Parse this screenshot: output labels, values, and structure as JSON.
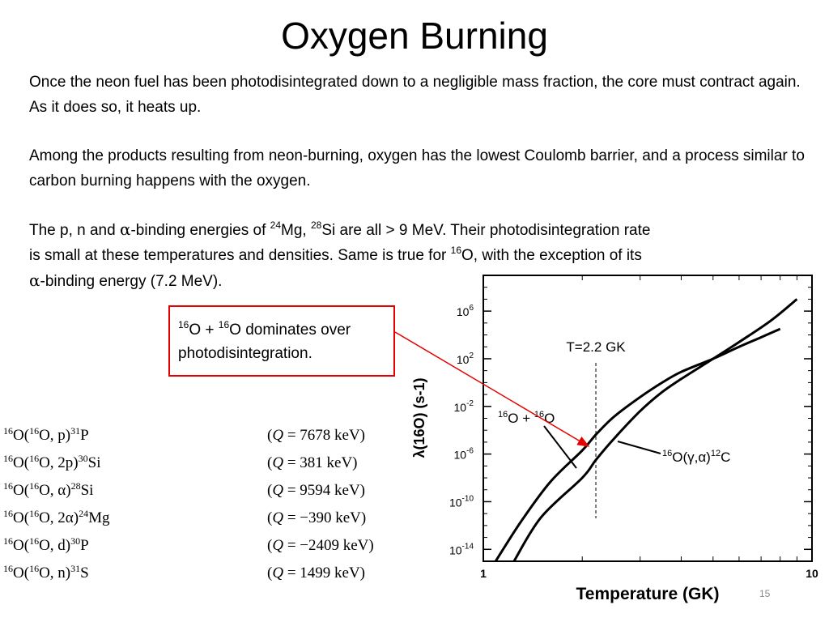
{
  "slide": {
    "title": "Oxygen Burning",
    "paragraph1": "Once the neon fuel has been photodisintegrated down to a negligible mass fraction, the core must contract again.  As it does so, it heats up.",
    "paragraph2": "Among the products resulting from neon-burning, oxygen has the lowest Coulomb barrier, and a process similar to carbon burning happens with the oxygen.",
    "paragraph3": {
      "t1": "The p, n and ",
      "alpha": "α",
      "t2": "-binding energies of ",
      "mass1": "24",
      "el1": "Mg, ",
      "mass2": "28",
      "el2": "Si are all > 9 MeV.  Their photodisintegration rate",
      "t3": "is small at these temperatures and densities.  Same is true for ",
      "mass3": "16",
      "el3": "O, with the exception of its",
      "alpha2": "α",
      "t4": "-binding energy (7.2 MeV)."
    },
    "callout": {
      "mass_a": "16",
      "text_a": "O + ",
      "mass_b": "16",
      "text_b": "O dominates over",
      "line2": "photodisintegration."
    },
    "reactions": [
      {
        "target_mass": "16",
        "target": "O(",
        "proj_mass": "16",
        "channel": "O, p)",
        "product_mass": "31",
        "product": "P",
        "q_open": "(",
        "q_var": "Q",
        "q_value": " = 7678 keV)"
      },
      {
        "target_mass": "16",
        "target": "O(",
        "proj_mass": "16",
        "channel": "O, 2p)",
        "product_mass": "30",
        "product": "Si",
        "q_open": "(",
        "q_var": "Q",
        "q_value": " = 381 keV)"
      },
      {
        "target_mass": "16",
        "target": "O(",
        "proj_mass": "16",
        "channel": "O, α)",
        "product_mass": "28",
        "product": "Si",
        "q_open": "(",
        "q_var": "Q",
        "q_value": " = 9594 keV)"
      },
      {
        "target_mass": "16",
        "target": "O(",
        "proj_mass": "16",
        "channel": "O, 2α)",
        "product_mass": "24",
        "product": "Mg",
        "q_open": "(",
        "q_var": "Q",
        "q_value": " = −390 keV)"
      },
      {
        "target_mass": "16",
        "target": "O(",
        "proj_mass": "16",
        "channel": "O, d)",
        "product_mass": "30",
        "product": "P",
        "q_open": "(",
        "q_var": "Q",
        "q_value": " = −2409 keV)"
      },
      {
        "target_mass": "16",
        "target": "O(",
        "proj_mass": "16",
        "channel": "O, n)",
        "product_mass": "31",
        "product": "S",
        "q_open": "(",
        "q_var": "Q",
        "q_value": " = 1499 keV)"
      }
    ],
    "slide_number": "15"
  },
  "chart_data": {
    "type": "line",
    "xlabel": "Temperature  (GK)",
    "ylabel": "λ(16O)  (s-1)",
    "x_scale": "log",
    "y_scale": "log",
    "xlim": [
      1,
      10
    ],
    "ylim": [
      1e-15,
      1000000000.0
    ],
    "x_ticks": [
      {
        "value": 1,
        "label": "1"
      },
      {
        "value": 10,
        "label": "10"
      }
    ],
    "y_ticks": [
      {
        "value": 1e-14,
        "base": "10",
        "exp": "-14"
      },
      {
        "value": 1e-10,
        "base": "10",
        "exp": "-10"
      },
      {
        "value": 1e-06,
        "base": "10",
        "exp": "-6"
      },
      {
        "value": 0.01,
        "base": "10",
        "exp": "-2"
      },
      {
        "value": 100.0,
        "base": "10",
        "exp": "2"
      },
      {
        "value": 1000000.0,
        "base": "10",
        "exp": "6"
      }
    ],
    "marker": {
      "label": "T=2.2 GK",
      "x": 2.2
    },
    "series": [
      {
        "name": "16O + 16O",
        "x": [
          1.09,
          1.3,
          1.6,
          2.0,
          2.2,
          2.5,
          3.0,
          3.5,
          4.0,
          5.0,
          6.0,
          7.0,
          8.0
        ],
        "y": [
          1e-15,
          2e-12,
          4.7e-09,
          2e-06,
          4.2e-05,
          0.0014,
          0.06,
          1.0,
          7.9,
          100.0,
          1000.0,
          6300.0,
          32000.0
        ]
      },
      {
        "name": "16O(γ,α)12C",
        "x": [
          1.24,
          1.5,
          2.0,
          2.2,
          2.5,
          3.0,
          3.5,
          4.0,
          5.0,
          6.0,
          7.5,
          9.0
        ],
        "y": [
          1e-15,
          5e-12,
          1e-08,
          3.2e-07,
          2e-05,
          0.004,
          0.16,
          2.0,
          100.0,
          2500.0,
          160000.0,
          10000000.0
        ]
      }
    ],
    "annotations": [
      {
        "mass_a": "16",
        "text_a": "O + ",
        "mass_b": "16",
        "text_b": "O"
      },
      {
        "mass_a": "16",
        "text_a": "O(γ,α)",
        "mass_b": "12",
        "text_b": "C"
      }
    ]
  }
}
